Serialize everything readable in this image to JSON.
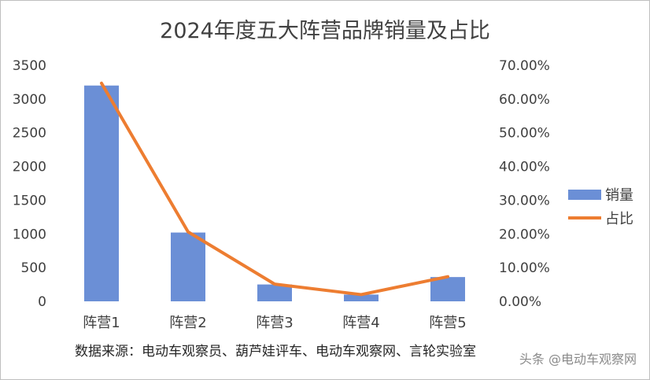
{
  "chart_data": {
    "type": "bar+line",
    "title": "2024年度五大阵营品牌销量及占比",
    "categories": [
      "阵营1",
      "阵营2",
      "阵营3",
      "阵营4",
      "阵营5"
    ],
    "series": [
      {
        "name": "销量",
        "type": "bar",
        "axis": "left",
        "color": "#6b8fd6",
        "values": [
          3200,
          1020,
          250,
          100,
          360
        ]
      },
      {
        "name": "占比",
        "type": "line",
        "axis": "right",
        "color": "#ed7d31",
        "values": [
          64.7,
          20.6,
          5.1,
          2.0,
          7.3
        ]
      }
    ],
    "y_left": {
      "ylim": [
        0,
        3500
      ],
      "ticks": [
        "0",
        "500",
        "1000",
        "1500",
        "2000",
        "2500",
        "3000",
        "3500"
      ]
    },
    "y_right": {
      "ylim": [
        0,
        70
      ],
      "ticks": [
        "0.00%",
        "10.00%",
        "20.00%",
        "30.00%",
        "40.00%",
        "50.00%",
        "60.00%",
        "70.00%"
      ]
    },
    "legend": {
      "position": "right",
      "items": [
        "销量",
        "占比"
      ]
    },
    "source": "数据来源：电动车观察员、葫芦娃评车、电动车观察网、言轮实验室",
    "watermark": "头条 @电动车观察网"
  }
}
